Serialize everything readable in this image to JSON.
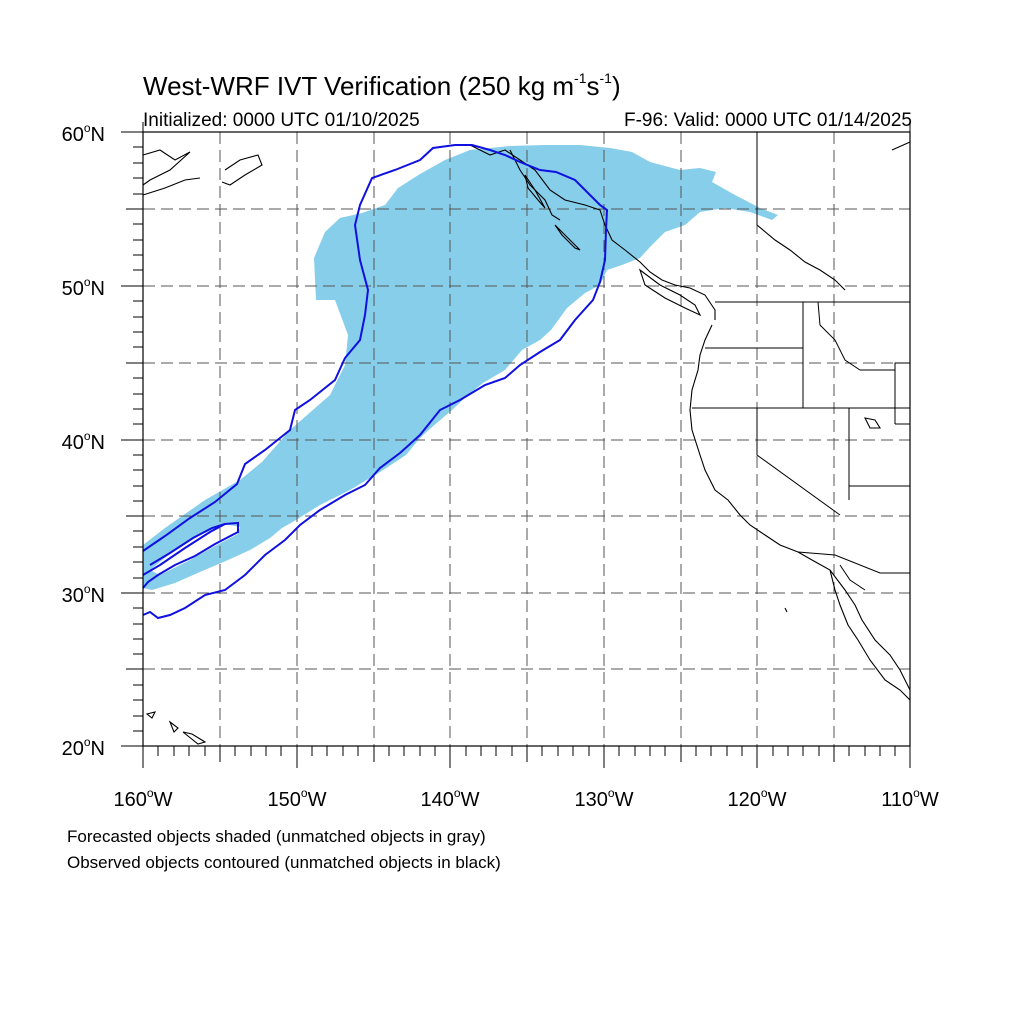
{
  "title": {
    "main": "West-WRF IVT Verification (250 kg m",
    "exp1": "-1",
    "s": "s",
    "exp2": "-1",
    "close": ")"
  },
  "init_text": "Initialized: 0000 UTC 01/10/2025",
  "valid_text": "F-96: Valid: 0000 UTC 01/14/2025",
  "lat_labels": [
    "60",
    "50",
    "40",
    "30",
    "20"
  ],
  "lat_suffix": "N",
  "lon_labels": [
    "160",
    "150",
    "140",
    "130",
    "120",
    "110"
  ],
  "lon_suffix": "W",
  "degree": "o",
  "legend": {
    "line1": "Forecasted objects shaded (unmatched objects in gray)",
    "line2": "Observed objects contoured (unmatched objects in black)"
  },
  "colors": {
    "forecast_fill": "#87ceeb",
    "observed_contour": "#1010e0",
    "coast": "#000000",
    "grid": "#555555"
  },
  "map_extent": {
    "lon_min": -160,
    "lon_max": -110,
    "lat_min": 20,
    "lat_max": 60
  }
}
